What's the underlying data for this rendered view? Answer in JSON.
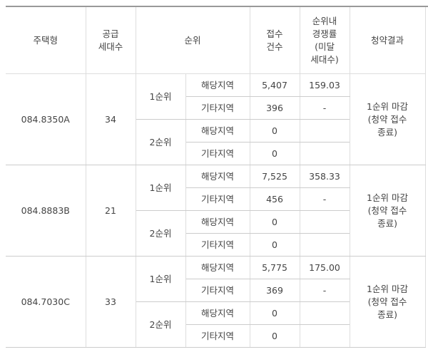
{
  "table": {
    "header": [
      [
        "주택형"
      ],
      [
        "공급",
        "세대수"
      ],
      [
        "순위"
      ],
      [
        "접수",
        "건수"
      ],
      [
        "순위내",
        "경쟁률",
        "(미달",
        "세대수)"
      ],
      [
        "청약결과"
      ]
    ],
    "groups": [
      {
        "type": "084.8350A",
        "supply": "34",
        "result": [
          "1순위 마감",
          "(청약 접수",
          "종료)"
        ],
        "ranks": [
          {
            "rank": "1순위",
            "rows": [
              {
                "area": "해당지역",
                "count": "5,407",
                "ratio": "159.03"
              },
              {
                "area": "기타지역",
                "count": "396",
                "ratio": "-"
              }
            ]
          },
          {
            "rank": "2순위",
            "rows": [
              {
                "area": "해당지역",
                "count": "0"
              },
              {
                "area": "기타지역",
                "count": "0"
              }
            ]
          }
        ]
      },
      {
        "type": "084.8883B",
        "supply": "21",
        "result": [
          "1순위 마감",
          "(청약 접수",
          "종료)"
        ],
        "ranks": [
          {
            "rank": "1순위",
            "rows": [
              {
                "area": "해당지역",
                "count": "7,525",
                "ratio": "358.33"
              },
              {
                "area": "기타지역",
                "count": "456",
                "ratio": "-"
              }
            ]
          },
          {
            "rank": "2순위",
            "rows": [
              {
                "area": "해당지역",
                "count": "0"
              },
              {
                "area": "기타지역",
                "count": "0"
              }
            ]
          }
        ]
      },
      {
        "type": "084.7030C",
        "supply": "33",
        "result": [
          "1순위 마감",
          "(청약 접수",
          "종료)"
        ],
        "ranks": [
          {
            "rank": "1순위",
            "rows": [
              {
                "area": "해당지역",
                "count": "5,775",
                "ratio": "175.00"
              },
              {
                "area": "기타지역",
                "count": "369",
                "ratio": "-"
              }
            ]
          },
          {
            "rank": "2순위",
            "rows": [
              {
                "area": "해당지역",
                "count": "0"
              },
              {
                "area": "기타지역",
                "count": "0"
              }
            ]
          }
        ]
      }
    ]
  }
}
